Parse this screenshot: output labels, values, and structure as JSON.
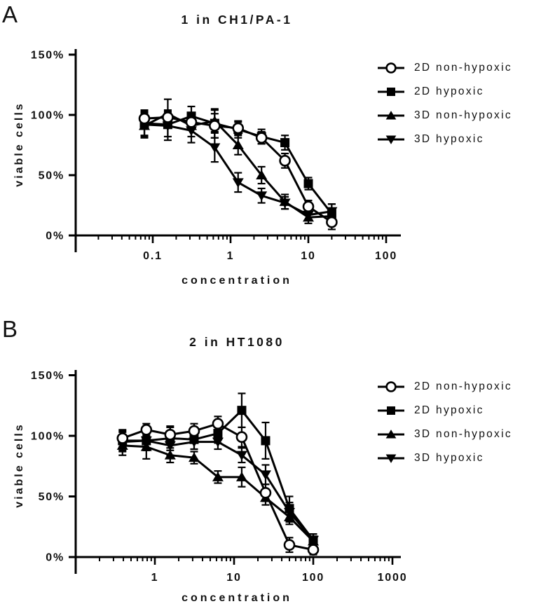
{
  "figure": {
    "background": "#ffffff",
    "ink_color": "#000000"
  },
  "chart_data": [
    {
      "type": "line",
      "panel_letter": "A",
      "title": "1 in CH1/PA-1",
      "xlabel": "concentration",
      "ylabel": "viable cells",
      "x_scale": "log",
      "xlim": [
        0.01,
        150
      ],
      "ylim": [
        0,
        150
      ],
      "grid": false,
      "legend_position": "right",
      "x_ticks": [
        0.1,
        1,
        10,
        100
      ],
      "x_tick_labels": [
        "0.1",
        "1",
        "10",
        "100"
      ],
      "y_ticks": [
        0,
        50,
        100,
        150
      ],
      "y_tick_labels": [
        "0%",
        "50%",
        "100%",
        "150%"
      ],
      "x": [
        0.078,
        0.156,
        0.313,
        0.625,
        1.25,
        2.5,
        5,
        10,
        20
      ],
      "series": [
        {
          "name": "2D non-hypoxic",
          "marker": "open-circle",
          "values": [
            97,
            98,
            94,
            91,
            89,
            81,
            62,
            24,
            11
          ],
          "errors": [
            7,
            6,
            6,
            10,
            5,
            5,
            6,
            5,
            6
          ]
        },
        {
          "name": "2D hypoxic",
          "marker": "filled-square",
          "values": [
            93,
            92,
            99,
            93,
            88,
            82,
            77,
            43,
            18
          ],
          "errors": [
            10,
            10,
            8,
            12,
            7,
            6,
            6,
            5,
            8
          ]
        },
        {
          "name": "3D non-hypoxic",
          "marker": "filled-triangle-up",
          "values": [
            91,
            101,
            91,
            95,
            75,
            50,
            28,
            15,
            16
          ],
          "errors": [
            10,
            12,
            9,
            9,
            8,
            7,
            6,
            5,
            5
          ]
        },
        {
          "name": "3D hypoxic",
          "marker": "filled-triangle-down",
          "values": [
            92,
            91,
            87,
            73,
            44,
            33,
            27,
            17,
            20
          ],
          "errors": [
            10,
            12,
            10,
            12,
            8,
            6,
            5,
            4,
            6
          ]
        }
      ]
    },
    {
      "type": "line",
      "panel_letter": "B",
      "title": "2 in HT1080",
      "xlabel": "concentration",
      "ylabel": "viable cells",
      "x_scale": "log",
      "xlim": [
        0.1,
        1500
      ],
      "ylim": [
        0,
        150
      ],
      "grid": false,
      "legend_position": "right",
      "x_ticks": [
        1,
        10,
        100,
        1000
      ],
      "x_tick_labels": [
        "1",
        "10",
        "100",
        "1000"
      ],
      "y_ticks": [
        0,
        50,
        100,
        150
      ],
      "y_tick_labels": [
        "0%",
        "50%",
        "100%",
        "150%"
      ],
      "x": [
        0.39,
        0.78,
        1.56,
        3.13,
        6.25,
        12.5,
        25,
        50,
        100
      ],
      "series": [
        {
          "name": "2D non-hypoxic",
          "marker": "open-circle",
          "values": [
            98,
            105,
            101,
            104,
            110,
            99,
            53,
            10,
            6
          ],
          "errors": [
            7,
            5,
            6,
            6,
            6,
            8,
            7,
            6,
            4
          ]
        },
        {
          "name": "2D hypoxic",
          "marker": "filled-square",
          "values": [
            96,
            96,
            98,
            97,
            102,
            121,
            96,
            40,
            14
          ],
          "errors": [
            8,
            8,
            10,
            8,
            8,
            14,
            15,
            10,
            5
          ]
        },
        {
          "name": "3D non-hypoxic",
          "marker": "filled-triangle-up",
          "values": [
            92,
            91,
            84,
            82,
            66,
            66,
            49,
            33,
            13
          ],
          "errors": [
            8,
            10,
            6,
            5,
            5,
            8,
            6,
            6,
            4
          ]
        },
        {
          "name": "3D hypoxic",
          "marker": "filled-triangle-down",
          "values": [
            95,
            96,
            92,
            95,
            95,
            84,
            68,
            37,
            14
          ],
          "errors": [
            8,
            8,
            8,
            6,
            6,
            6,
            8,
            8,
            5
          ]
        }
      ]
    }
  ]
}
